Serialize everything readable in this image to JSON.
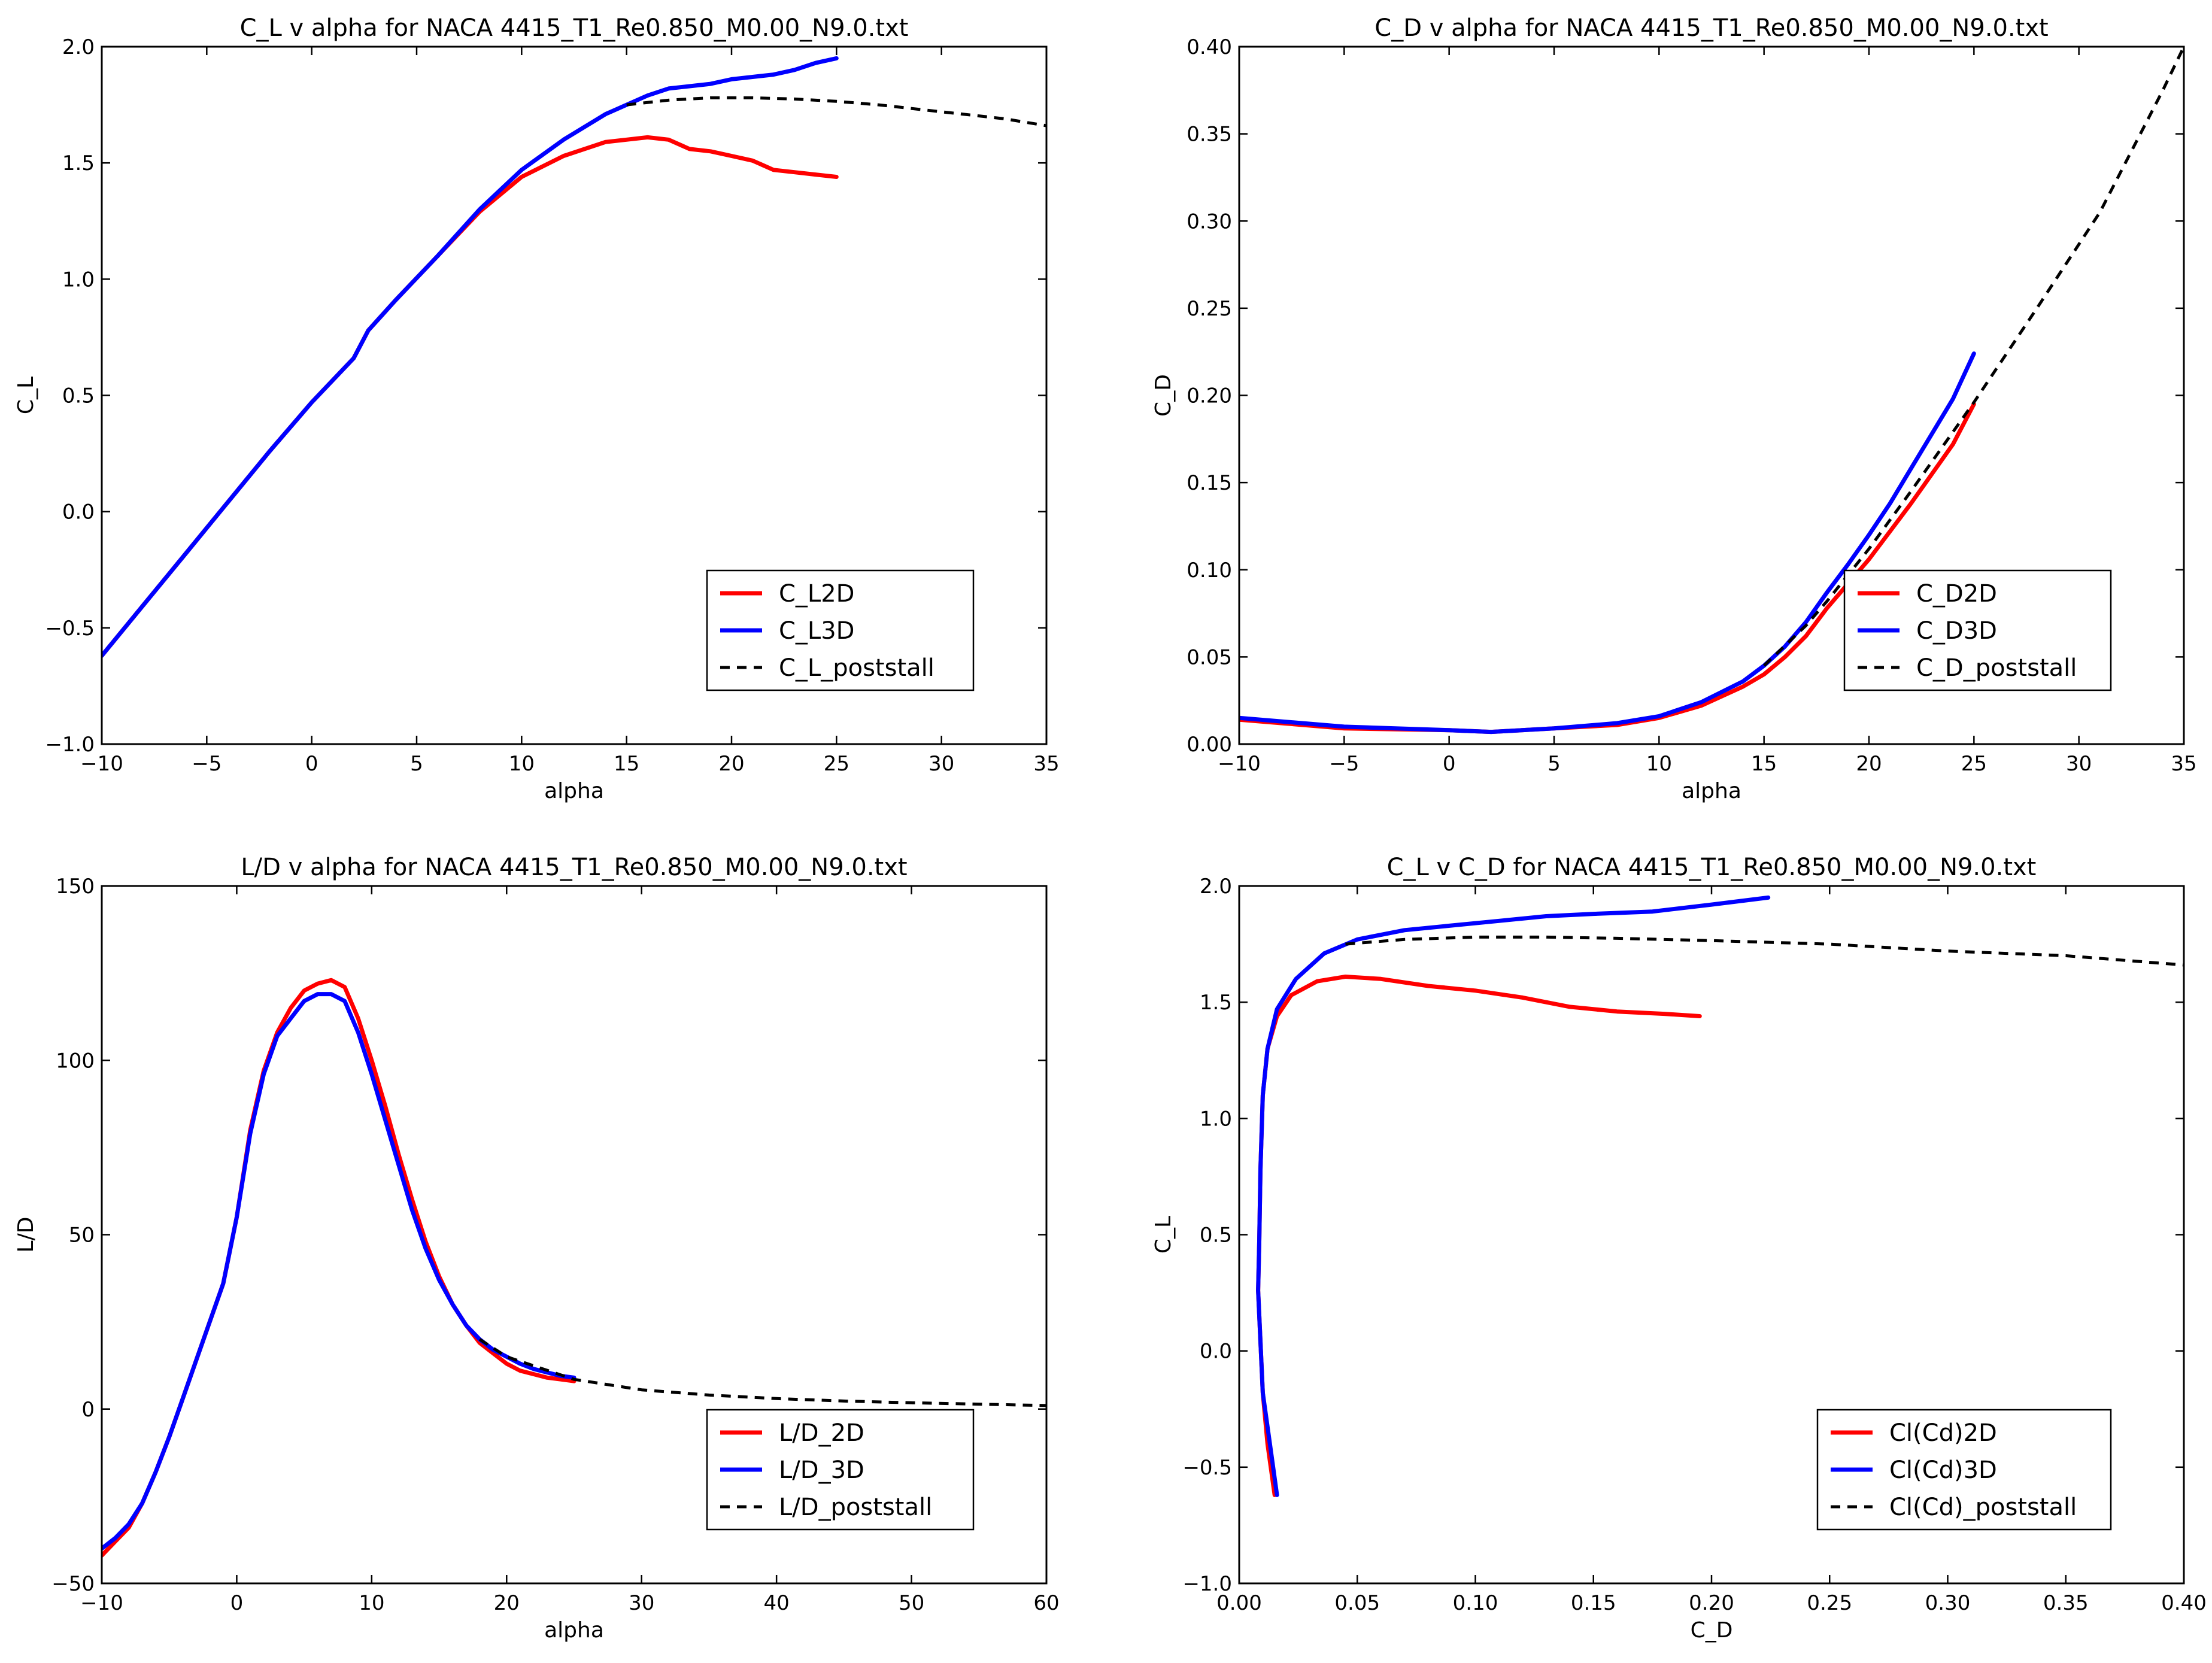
{
  "chart_data": [
    {
      "type": "line",
      "title": "C_L v alpha for NACA 4415_T1_Re0.850_M0.00_N9.0.txt",
      "xlabel": "alpha",
      "ylabel": "C_L",
      "xlim": [
        -10,
        35
      ],
      "ylim": [
        -1.0,
        2.0
      ],
      "xticks": [
        -10,
        -5,
        0,
        5,
        10,
        15,
        20,
        25,
        30,
        35
      ],
      "xtick_labels": [
        "−10",
        "−5",
        "0",
        "5",
        "10",
        "15",
        "20",
        "25",
        "30",
        "35"
      ],
      "yticks": [
        -1.0,
        -0.5,
        0.0,
        0.5,
        1.0,
        1.5,
        2.0
      ],
      "ytick_labels": [
        "−1.0",
        "−0.5",
        "0.0",
        "0.5",
        "1.0",
        "1.5",
        "2.0"
      ],
      "legend_position": "lower-right",
      "series": [
        {
          "name": "C_L2D",
          "color": "#ff0000",
          "style": "solid",
          "x": [
            -10,
            -8,
            -6,
            -4,
            -2,
            0,
            2,
            2.7,
            4,
            6,
            8,
            10,
            12,
            14,
            15,
            16,
            17,
            18,
            19,
            20,
            21,
            22,
            23,
            24,
            25
          ],
          "y": [
            -0.62,
            -0.4,
            -0.18,
            0.04,
            0.26,
            0.47,
            0.66,
            0.78,
            0.91,
            1.1,
            1.29,
            1.44,
            1.53,
            1.59,
            1.6,
            1.61,
            1.6,
            1.56,
            1.55,
            1.53,
            1.51,
            1.47,
            1.46,
            1.45,
            1.44
          ]
        },
        {
          "name": "C_L3D",
          "color": "#0000ff",
          "style": "solid",
          "x": [
            -10,
            -8,
            -6,
            -4,
            -2,
            0,
            2,
            2.7,
            4,
            6,
            8,
            10,
            12,
            14,
            15,
            16,
            17,
            18,
            19,
            20,
            21,
            22,
            23,
            24,
            25
          ],
          "y": [
            -0.62,
            -0.4,
            -0.18,
            0.04,
            0.26,
            0.47,
            0.66,
            0.78,
            0.91,
            1.1,
            1.3,
            1.47,
            1.6,
            1.71,
            1.75,
            1.79,
            1.82,
            1.83,
            1.84,
            1.86,
            1.87,
            1.88,
            1.9,
            1.93,
            1.95
          ]
        },
        {
          "name": "C_L_poststall",
          "color": "#000000",
          "style": "dashed",
          "x": [
            15,
            17,
            19,
            21,
            23,
            25,
            27,
            29,
            31,
            33,
            35
          ],
          "y": [
            1.75,
            1.77,
            1.78,
            1.78,
            1.775,
            1.765,
            1.75,
            1.73,
            1.71,
            1.69,
            1.66
          ]
        }
      ]
    },
    {
      "type": "line",
      "title": "C_D v alpha for NACA 4415_T1_Re0.850_M0.00_N9.0.txt",
      "xlabel": "alpha",
      "ylabel": "C_D",
      "xlim": [
        -10,
        35
      ],
      "ylim": [
        0.0,
        0.4
      ],
      "xticks": [
        -10,
        -5,
        0,
        5,
        10,
        15,
        20,
        25,
        30,
        35
      ],
      "xtick_labels": [
        "−10",
        "−5",
        "0",
        "5",
        "10",
        "15",
        "20",
        "25",
        "30",
        "35"
      ],
      "yticks": [
        0.0,
        0.05,
        0.1,
        0.15,
        0.2,
        0.25,
        0.3,
        0.35,
        0.4
      ],
      "ytick_labels": [
        "0.00",
        "0.05",
        "0.10",
        "0.15",
        "0.20",
        "0.25",
        "0.30",
        "0.35",
        "0.40"
      ],
      "legend_position": "lower-right",
      "series": [
        {
          "name": "C_D2D",
          "color": "#ff0000",
          "style": "solid",
          "x": [
            -10,
            -8,
            -5,
            0,
            2,
            5,
            8,
            10,
            12,
            14,
            15,
            16,
            17,
            18,
            19,
            20,
            21,
            22,
            23,
            24,
            25
          ],
          "y": [
            0.014,
            0.012,
            0.009,
            0.008,
            0.007,
            0.009,
            0.011,
            0.015,
            0.022,
            0.033,
            0.04,
            0.05,
            0.062,
            0.078,
            0.092,
            0.106,
            0.122,
            0.138,
            0.155,
            0.172,
            0.195
          ]
        },
        {
          "name": "C_D3D",
          "color": "#0000ff",
          "style": "solid",
          "x": [
            -10,
            -8,
            -5,
            0,
            2,
            5,
            8,
            10,
            12,
            14,
            15,
            16,
            17,
            18,
            19,
            20,
            21,
            22,
            23,
            24,
            25
          ],
          "y": [
            0.015,
            0.013,
            0.01,
            0.008,
            0.007,
            0.009,
            0.012,
            0.016,
            0.024,
            0.036,
            0.045,
            0.056,
            0.07,
            0.087,
            0.103,
            0.12,
            0.138,
            0.158,
            0.178,
            0.198,
            0.224
          ]
        },
        {
          "name": "C_D_poststall",
          "color": "#000000",
          "style": "dashed",
          "x": [
            15,
            17,
            18,
            20,
            22,
            25,
            28,
            31,
            34,
            35
          ],
          "y": [
            0.045,
            0.068,
            0.082,
            0.112,
            0.145,
            0.196,
            0.25,
            0.305,
            0.375,
            0.4
          ]
        }
      ]
    },
    {
      "type": "line",
      "title": "L/D v alpha for NACA 4415_T1_Re0.850_M0.00_N9.0.txt",
      "xlabel": "alpha",
      "ylabel": "L/D",
      "xlim": [
        -10,
        60
      ],
      "ylim": [
        -50,
        150
      ],
      "xticks": [
        -10,
        0,
        10,
        20,
        30,
        40,
        50,
        60
      ],
      "xtick_labels": [
        "−10",
        "0",
        "10",
        "20",
        "30",
        "40",
        "50",
        "60"
      ],
      "yticks": [
        -50,
        0,
        50,
        100,
        150
      ],
      "ytick_labels": [
        "−50",
        "0",
        "50",
        "100",
        "150"
      ],
      "legend_position": "lower-right",
      "series": [
        {
          "name": "L/D_2D",
          "color": "#ff0000",
          "style": "solid",
          "x": [
            -10,
            -9,
            -8,
            -7,
            -6,
            -5,
            -4,
            -3,
            -2,
            -1,
            0,
            1,
            2,
            3,
            4,
            5,
            6,
            7,
            8,
            9,
            10,
            11,
            12,
            13,
            14,
            15,
            16,
            17,
            18,
            19,
            20,
            21,
            22,
            23,
            24,
            25
          ],
          "y": [
            -42,
            -38,
            -34,
            -27,
            -18,
            -8,
            3,
            14,
            25,
            36,
            55,
            80,
            97,
            108,
            115,
            120,
            122,
            123,
            121,
            112,
            100,
            87,
            73,
            60,
            48,
            38,
            30,
            24,
            19,
            16,
            13,
            11,
            10,
            9,
            8.5,
            8
          ]
        },
        {
          "name": "L/D_3D",
          "color": "#0000ff",
          "style": "solid",
          "x": [
            -10,
            -9,
            -8,
            -7,
            -6,
            -5,
            -4,
            -3,
            -2,
            -1,
            0,
            1,
            2,
            3,
            4,
            5,
            6,
            7,
            8,
            9,
            10,
            11,
            12,
            13,
            14,
            15,
            16,
            17,
            18,
            19,
            20,
            21,
            22,
            23,
            24,
            25
          ],
          "y": [
            -40,
            -37,
            -33,
            -27,
            -18,
            -8,
            3,
            14,
            25,
            36,
            55,
            79,
            96,
            107,
            112,
            117,
            119,
            119,
            117,
            108,
            96,
            83,
            70,
            57,
            46,
            37,
            30,
            24,
            20,
            17,
            15,
            13,
            11.5,
            10.5,
            9.5,
            9
          ]
        },
        {
          "name": "L/D_poststall",
          "color": "#000000",
          "style": "dashed",
          "x": [
            18,
            20,
            25,
            30,
            35,
            40,
            45,
            50,
            55,
            60
          ],
          "y": [
            20,
            15,
            8.5,
            5.5,
            4,
            3,
            2.3,
            1.8,
            1.4,
            1
          ]
        }
      ]
    },
    {
      "type": "line",
      "title": "C_L v C_D for NACA 4415_T1_Re0.850_M0.00_N9.0.txt",
      "xlabel": "C_D",
      "ylabel": "C_L",
      "xlim": [
        0.0,
        0.4
      ],
      "ylim": [
        -1.0,
        2.0
      ],
      "xticks": [
        0.0,
        0.05,
        0.1,
        0.15,
        0.2,
        0.25,
        0.3,
        0.35,
        0.4
      ],
      "xtick_labels": [
        "0.00",
        "0.05",
        "0.10",
        "0.15",
        "0.20",
        "0.25",
        "0.30",
        "0.35",
        "0.40"
      ],
      "yticks": [
        -1.0,
        -0.5,
        0.0,
        0.5,
        1.0,
        1.5,
        2.0
      ],
      "ytick_labels": [
        "−1.0",
        "−0.5",
        "0.0",
        "0.5",
        "1.0",
        "1.5",
        "2.0"
      ],
      "legend_position": "lower-right",
      "series": [
        {
          "name": "Cl(Cd)2D",
          "color": "#ff0000",
          "style": "solid",
          "x": [
            0.015,
            0.012,
            0.01,
            0.009,
            0.008,
            0.0085,
            0.009,
            0.01,
            0.012,
            0.016,
            0.022,
            0.033,
            0.045,
            0.06,
            0.08,
            0.1,
            0.12,
            0.14,
            0.16,
            0.18,
            0.195
          ],
          "y": [
            -0.62,
            -0.4,
            -0.18,
            0.04,
            0.26,
            0.47,
            0.78,
            1.1,
            1.3,
            1.44,
            1.53,
            1.59,
            1.61,
            1.6,
            1.57,
            1.55,
            1.52,
            1.48,
            1.46,
            1.45,
            1.44
          ]
        },
        {
          "name": "Cl(Cd)3D",
          "color": "#0000ff",
          "style": "solid",
          "x": [
            0.016,
            0.013,
            0.01,
            0.009,
            0.008,
            0.0085,
            0.009,
            0.01,
            0.012,
            0.016,
            0.024,
            0.036,
            0.05,
            0.07,
            0.09,
            0.11,
            0.13,
            0.15,
            0.175,
            0.2,
            0.224
          ],
          "y": [
            -0.62,
            -0.4,
            -0.18,
            0.04,
            0.26,
            0.47,
            0.78,
            1.1,
            1.3,
            1.47,
            1.6,
            1.71,
            1.77,
            1.81,
            1.83,
            1.85,
            1.87,
            1.88,
            1.89,
            1.92,
            1.95
          ]
        },
        {
          "name": "Cl(Cd)_poststall",
          "color": "#000000",
          "style": "dashed",
          "x": [
            0.045,
            0.07,
            0.1,
            0.13,
            0.16,
            0.2,
            0.25,
            0.3,
            0.35,
            0.4
          ],
          "y": [
            1.75,
            1.77,
            1.78,
            1.78,
            1.775,
            1.765,
            1.75,
            1.72,
            1.7,
            1.66
          ]
        }
      ]
    }
  ]
}
